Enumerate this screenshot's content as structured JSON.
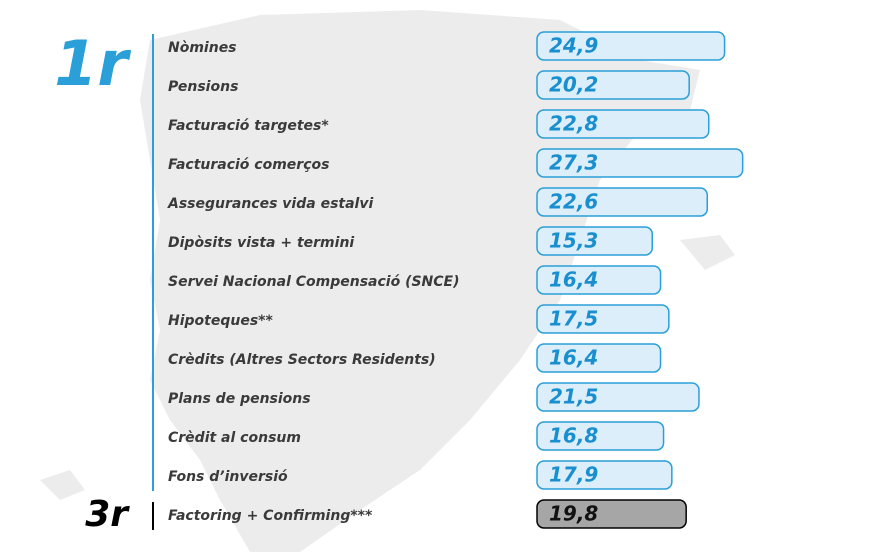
{
  "chart_data": {
    "type": "bar",
    "orientation": "horizontal",
    "xlim": [
      0,
      30
    ],
    "groups": [
      {
        "label": "1r",
        "color": "#2a9fd8",
        "fill": "#dceefa",
        "text_color": "#1a8fd0",
        "categories": [
          "Nòmines",
          "Pensions",
          "Facturació targetes*",
          "Facturació comerços",
          "Assegurances vida estalvi",
          "Dipòsits vista + termini",
          "Servei Nacional Compensació (SNCE)",
          "Hipoteques**",
          "Crèdits (Altres Sectors Residents)",
          "Plans de pensions",
          "Crèdit al consum",
          "Fons d’inversió"
        ],
        "values": [
          24.9,
          20.2,
          22.8,
          27.3,
          22.6,
          15.3,
          16.4,
          17.5,
          16.4,
          21.5,
          16.8,
          17.9
        ],
        "value_labels": [
          "24,9",
          "20,2",
          "22,8",
          "27,3",
          "22,6",
          "15,3",
          "16,4",
          "17,5",
          "16,4",
          "21,5",
          "16,8",
          "17,9"
        ]
      },
      {
        "label": "3r",
        "color": "#000000",
        "fill": "#a6a6a6",
        "text_color": "#111111",
        "categories": [
          "Factoring + Confirming***"
        ],
        "values": [
          19.8
        ],
        "value_labels": [
          "19,8"
        ]
      }
    ]
  }
}
